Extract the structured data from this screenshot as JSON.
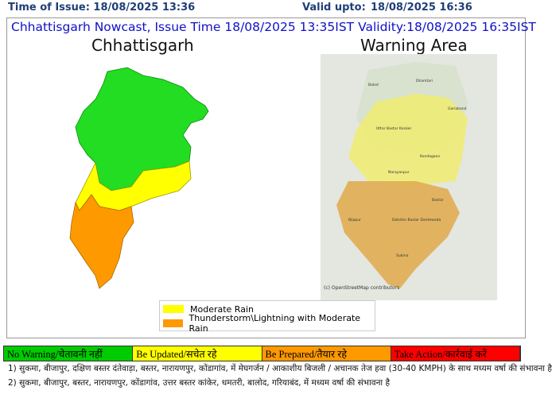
{
  "header": {
    "issue_time": "Time of Issue: 18/08/2025 13:36",
    "valid_upto_label": "Valid upto:",
    "valid_upto": "18/08/2025 16:36"
  },
  "bulletin_title": "Chhattisgarh Nowcast, Issue Time 18/08/2025 13:35IST  Validity:18/08/2025 16:35IST",
  "left_map": {
    "title": "Chhattisgarh"
  },
  "right_map": {
    "title": "Warning Area",
    "places": [
      "Balod",
      "Dhamtari",
      "Gariaband",
      "Uttar Bastar Kanker",
      "Kondagaon",
      "Narayanpur",
      "Bastar",
      "Bijapur",
      "Dakshin Bastar Dantewada",
      "Sukma"
    ],
    "attribution": "(c) OpenStreetMap contributors"
  },
  "legend": [
    {
      "label": "Moderate Rain",
      "color": "#ffff00"
    },
    {
      "label": "Thunderstorm\\Lightning with Moderate Rain",
      "color": "#ff9900"
    }
  ],
  "warning_levels": [
    {
      "label": "No Warning/चेतावनी नहीं",
      "color": "#00cc00"
    },
    {
      "label": "Be Updated/सचेत रहे",
      "color": "#ffff00"
    },
    {
      "label": "Be Prepared/तैयार रहे",
      "color": "#ff9900"
    },
    {
      "label": "Take Action/कार्रवाई करें",
      "color": "#ff0000"
    }
  ],
  "notes": [
    "1) सुकमा, बीजापुर, दक्षिण बस्तर दंतेवाड़ा, बस्तर, नारायणपुर, कोंडागांव, में मेघगर्जन / आकाशीय बिजली / अचानक तेज हवा (30-40 KMPH) के साथ मध्यम वर्षा की संभावना है",
    "2) सुकमा, बीजापुर, बस्तर, नारायणपुर, कोंडागांव, उत्तर बस्तर कांकेर, धमतरी, बालोद, गरियाबंद, में मध्यम वर्षा की संभावना है"
  ]
}
